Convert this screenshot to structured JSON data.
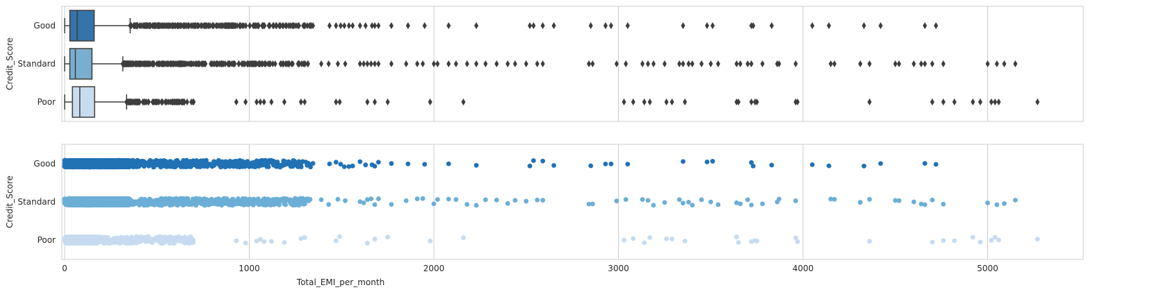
{
  "chart_data": [
    {
      "type": "box",
      "orientation": "horizontal",
      "title": "",
      "xlabel": "",
      "ylabel": "Credit_Score",
      "categories": [
        "Good",
        "Standard",
        "Poor"
      ],
      "colors": {
        "Good": "#3474a8",
        "Standard": "#7aaed0",
        "Poor": "#c8dcf0"
      },
      "xlim": [
        -20,
        5550
      ],
      "grid": true,
      "series": [
        {
          "name": "Good",
          "min": 0,
          "q1": 28,
          "median": 68,
          "q3": 160,
          "max": 355,
          "outliers_dense_range": [
            355,
            1340
          ],
          "outliers": [
            1345,
            1435,
            1470,
            1495,
            1515,
            1540,
            1560,
            1600,
            1630,
            1665,
            1680,
            1700,
            1770,
            1860,
            1950,
            2080,
            2230,
            2520,
            2540,
            2590,
            2650,
            2850,
            2930,
            2960,
            3050,
            3350,
            3480,
            3510,
            3720,
            3730,
            3830,
            4050,
            4140,
            4330,
            4420,
            4660,
            4720
          ]
        },
        {
          "name": "Standard",
          "min": 0,
          "q1": 28,
          "median": 58,
          "q3": 148,
          "max": 315,
          "outliers_dense_range": [
            315,
            1330
          ],
          "outliers": [
            1390,
            1430,
            1480,
            1520,
            1600,
            1620,
            1640,
            1660,
            1680,
            1700,
            1770,
            1850,
            1910,
            1940,
            2000,
            2020,
            2080,
            2120,
            2180,
            2230,
            2280,
            2340,
            2400,
            2440,
            2500,
            2560,
            2590,
            2840,
            2860,
            2990,
            3040,
            3130,
            3160,
            3190,
            3250,
            3330,
            3350,
            3380,
            3400,
            3450,
            3500,
            3540,
            3640,
            3660,
            3700,
            3720,
            3780,
            3860,
            3870,
            3960,
            4150,
            4170,
            4310,
            4360,
            4500,
            4520,
            4600,
            4640,
            4660,
            4700,
            4760,
            5000,
            5050,
            5090,
            5150
          ]
        },
        {
          "name": "Poor",
          "min": 0,
          "q1": 42,
          "median": 82,
          "q3": 162,
          "max": 335,
          "outliers_dense_range": [
            335,
            700
          ],
          "outliers": [
            930,
            980,
            1040,
            1060,
            1080,
            1120,
            1190,
            1280,
            1300,
            1470,
            1490,
            1640,
            1680,
            1750,
            1980,
            2160,
            3030,
            3080,
            3140,
            3170,
            3260,
            3290,
            3360,
            3640,
            3650,
            3720,
            3740,
            3750,
            3960,
            3970,
            4360,
            4700,
            4760,
            4820,
            4920,
            4960,
            5020,
            5040,
            5060,
            5270
          ]
        }
      ]
    },
    {
      "type": "scatter",
      "subtype": "strip",
      "title": "",
      "xlabel": "Total_EMI_per_month",
      "ylabel": "Credit_Score",
      "categories": [
        "Good",
        "Standard",
        "Poor"
      ],
      "colors": {
        "Good": "#2171b5",
        "Standard": "#6baed6",
        "Poor": "#c6dbef"
      },
      "xlim": [
        -20,
        5550
      ],
      "xticks": [
        0,
        1000,
        2000,
        3000,
        4000,
        5000
      ],
      "grid": true,
      "series": [
        {
          "name": "Good",
          "dense_range": [
            0,
            1340
          ],
          "points": [
            1345,
            1435,
            1470,
            1495,
            1515,
            1540,
            1560,
            1600,
            1630,
            1665,
            1680,
            1700,
            1770,
            1860,
            1950,
            2080,
            2230,
            2520,
            2540,
            2590,
            2650,
            2850,
            2930,
            2960,
            3050,
            3350,
            3480,
            3510,
            3720,
            3730,
            3830,
            4050,
            4140,
            4330,
            4420,
            4660,
            4720
          ]
        },
        {
          "name": "Standard",
          "dense_range": [
            0,
            1330
          ],
          "points": [
            1390,
            1430,
            1480,
            1520,
            1600,
            1620,
            1640,
            1660,
            1680,
            1700,
            1770,
            1850,
            1910,
            1940,
            2000,
            2020,
            2080,
            2120,
            2180,
            2230,
            2280,
            2340,
            2400,
            2440,
            2500,
            2560,
            2590,
            2840,
            2860,
            2990,
            3040,
            3130,
            3160,
            3190,
            3250,
            3330,
            3350,
            3380,
            3400,
            3450,
            3500,
            3540,
            3640,
            3660,
            3700,
            3720,
            3780,
            3860,
            3870,
            3960,
            4150,
            4170,
            4310,
            4360,
            4500,
            4520,
            4600,
            4640,
            4660,
            4700,
            4760,
            5000,
            5050,
            5090,
            5150
          ]
        },
        {
          "name": "Poor",
          "dense_range": [
            0,
            700
          ],
          "points": [
            930,
            980,
            1040,
            1060,
            1080,
            1120,
            1190,
            1280,
            1300,
            1470,
            1490,
            1640,
            1680,
            1750,
            1980,
            2160,
            3030,
            3080,
            3140,
            3170,
            3260,
            3290,
            3360,
            3640,
            3650,
            3720,
            3740,
            3750,
            3960,
            3970,
            4360,
            4700,
            4760,
            4820,
            4920,
            4960,
            5020,
            5040,
            5060,
            5270
          ]
        }
      ]
    }
  ]
}
